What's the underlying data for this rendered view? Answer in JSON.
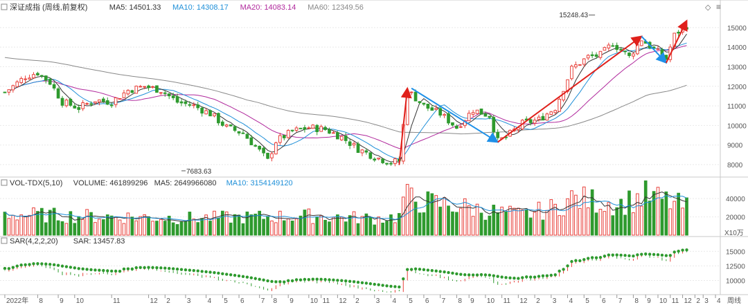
{
  "header": {
    "price": {
      "name": "深证成指 (周线,前复权)",
      "items": [
        {
          "label": "MA5: 14501.33",
          "color": "#333333"
        },
        {
          "label": "MA10: 14308.17",
          "color": "#1e8fd8"
        },
        {
          "label": "MA20: 14083.14",
          "color": "#b0289c"
        },
        {
          "label": "MA60: 12349.56",
          "color": "#888888"
        }
      ]
    },
    "volume": {
      "name": "VOL-TDX(5,10)",
      "items": [
        {
          "label": "VOLUME: 461899296",
          "color": "#333333"
        },
        {
          "label": "MA5: 2649966080",
          "color": "#333333"
        },
        {
          "label": "MA10: 3154149120",
          "color": "#1e8fd8"
        }
      ]
    },
    "sar": {
      "name": "SAR(4,2,2,20)",
      "items": [
        {
          "label": "SAR: 13457.83",
          "color": "#333333"
        }
      ]
    }
  },
  "colors": {
    "up": "#e8413b",
    "down": "#2e9a2e",
    "ma5": "#333333",
    "ma10": "#1e8fd8",
    "ma20": "#b0289c",
    "ma60": "#888888",
    "arrow_up": "#e0201b",
    "arrow_down": "#1e90e8"
  },
  "chart_data": [
    {
      "type": "candlestick",
      "panel": "price",
      "period": "weekly",
      "y_ticks": [
        8000,
        9000,
        10000,
        11000,
        12000,
        13000,
        14000,
        15000
      ],
      "ylim": [
        7400,
        15700
      ],
      "annotations": [
        {
          "text": "7683.63",
          "week": 43,
          "value": 7683.63,
          "kind": "low"
        },
        {
          "text": "15248.43",
          "week": 143,
          "value": 15248.43,
          "kind": "high"
        }
      ],
      "close_path_weekly": [
        [
          0,
          11700
        ],
        [
          2,
          12000
        ],
        [
          5,
          12500
        ],
        [
          8,
          12700
        ],
        [
          11,
          12200
        ],
        [
          14,
          11200
        ],
        [
          18,
          10900
        ],
        [
          22,
          11300
        ],
        [
          26,
          11200
        ],
        [
          30,
          11800
        ],
        [
          34,
          12000
        ],
        [
          38,
          11800
        ],
        [
          42,
          11200
        ],
        [
          46,
          11000
        ],
        [
          50,
          10600
        ],
        [
          54,
          9900
        ],
        [
          58,
          9600
        ],
        [
          62,
          8700
        ],
        [
          64,
          8200
        ],
        [
          66,
          9200
        ],
        [
          70,
          9700
        ],
        [
          74,
          9900
        ],
        [
          78,
          9800
        ],
        [
          82,
          9400
        ],
        [
          86,
          8800
        ],
        [
          90,
          8400
        ],
        [
          94,
          8100
        ],
        [
          96,
          8200
        ],
        [
          98,
          11800
        ],
        [
          102,
          11000
        ],
        [
          106,
          10600
        ],
        [
          110,
          9900
        ],
        [
          114,
          10800
        ],
        [
          118,
          10500
        ],
        [
          120,
          9200
        ],
        [
          122,
          9400
        ],
        [
          126,
          10100
        ],
        [
          130,
          10300
        ],
        [
          134,
          10900
        ],
        [
          138,
          12900
        ],
        [
          142,
          13500
        ],
        [
          145,
          13600
        ],
        [
          148,
          14200
        ],
        [
          152,
          13500
        ],
        [
          155,
          14400
        ],
        [
          158,
          13900
        ],
        [
          161,
          13400
        ],
        [
          163,
          14600
        ],
        [
          164,
          14800
        ],
        [
          166,
          15100
        ]
      ],
      "trend_arrows": [
        {
          "from_week": 96,
          "from_value": 7980,
          "to_week": 98,
          "to_value": 11900,
          "direction": "up"
        },
        {
          "from_week": 99,
          "from_value": 11900,
          "to_week": 120,
          "to_value": 9150,
          "direction": "down"
        },
        {
          "from_week": 120,
          "from_value": 9150,
          "to_week": 155,
          "to_value": 14550,
          "direction": "up"
        },
        {
          "from_week": 155,
          "from_value": 14550,
          "to_week": 161,
          "to_value": 13200,
          "direction": "down"
        },
        {
          "from_week": 161,
          "from_value": 13200,
          "to_week": 166,
          "to_value": 15350,
          "direction": "up"
        }
      ]
    },
    {
      "type": "bar",
      "panel": "volume",
      "unit": "X10万",
      "y_ticks": [
        20000,
        40000
      ],
      "ylim": [
        0,
        53000
      ],
      "volume_path_weekly": [
        [
          0,
          23000
        ],
        [
          15,
          21000
        ],
        [
          30,
          20000
        ],
        [
          45,
          18500
        ],
        [
          60,
          19500
        ],
        [
          75,
          21000
        ],
        [
          90,
          18000
        ],
        [
          96,
          20000
        ],
        [
          97,
          42000
        ],
        [
          102,
          36000
        ],
        [
          110,
          32000
        ],
        [
          118,
          26000
        ],
        [
          126,
          22000
        ],
        [
          134,
          30000
        ],
        [
          138,
          40000
        ],
        [
          150,
          34000
        ],
        [
          156,
          43000
        ],
        [
          162,
          36000
        ],
        [
          166,
          30000
        ]
      ]
    },
    {
      "type": "scatter",
      "panel": "sar",
      "y_ticks": [
        10000,
        12500,
        15000
      ],
      "ylim": [
        7800,
        16000
      ]
    }
  ],
  "x_axis": {
    "labels": [
      {
        "week": 0,
        "text": "2022年"
      },
      {
        "week": 8,
        "text": "8"
      },
      {
        "week": 13,
        "text": "9"
      },
      {
        "week": 17,
        "text": "10"
      },
      {
        "week": 26,
        "text": "11"
      },
      {
        "week": 35,
        "text": "12"
      },
      {
        "week": 39,
        "text": "2"
      },
      {
        "week": 44,
        "text": "3"
      },
      {
        "week": 49,
        "text": "4"
      },
      {
        "week": 53,
        "text": "5"
      },
      {
        "week": 57,
        "text": "6"
      },
      {
        "week": 62,
        "text": "7"
      },
      {
        "week": 65,
        "text": "8"
      },
      {
        "week": 69,
        "text": "9"
      },
      {
        "week": 74,
        "text": "10"
      },
      {
        "week": 77,
        "text": "11"
      },
      {
        "week": 81,
        "text": "12"
      },
      {
        "week": 85,
        "text": "2"
      },
      {
        "week": 90,
        "text": "3"
      },
      {
        "week": 94,
        "text": "4"
      },
      {
        "week": 98,
        "text": "5"
      },
      {
        "week": 102,
        "text": "6"
      },
      {
        "week": 106,
        "text": "7"
      },
      {
        "week": 110,
        "text": "8"
      },
      {
        "week": 113,
        "text": "9"
      },
      {
        "week": 117,
        "text": "10"
      },
      {
        "week": 121,
        "text": "11"
      },
      {
        "week": 125,
        "text": "12"
      },
      {
        "week": 129,
        "text": "2"
      },
      {
        "week": 133,
        "text": "3"
      },
      {
        "week": 137,
        "text": "4"
      },
      {
        "week": 141,
        "text": "5"
      },
      {
        "week": 145,
        "text": "6"
      },
      {
        "week": 149,
        "text": "7"
      },
      {
        "week": 153,
        "text": "8"
      },
      {
        "week": 156,
        "text": "9"
      },
      {
        "week": 159,
        "text": "10"
      },
      {
        "week": 162,
        "text": "11"
      },
      {
        "week": 165,
        "text": "12"
      },
      {
        "week": 168,
        "text": "2"
      },
      {
        "week": 170,
        "text": "3"
      },
      {
        "week": 173,
        "text": "4"
      }
    ],
    "period_label": "周线"
  },
  "toolbar": {
    "diamond": "◇",
    "menu": "≡"
  }
}
